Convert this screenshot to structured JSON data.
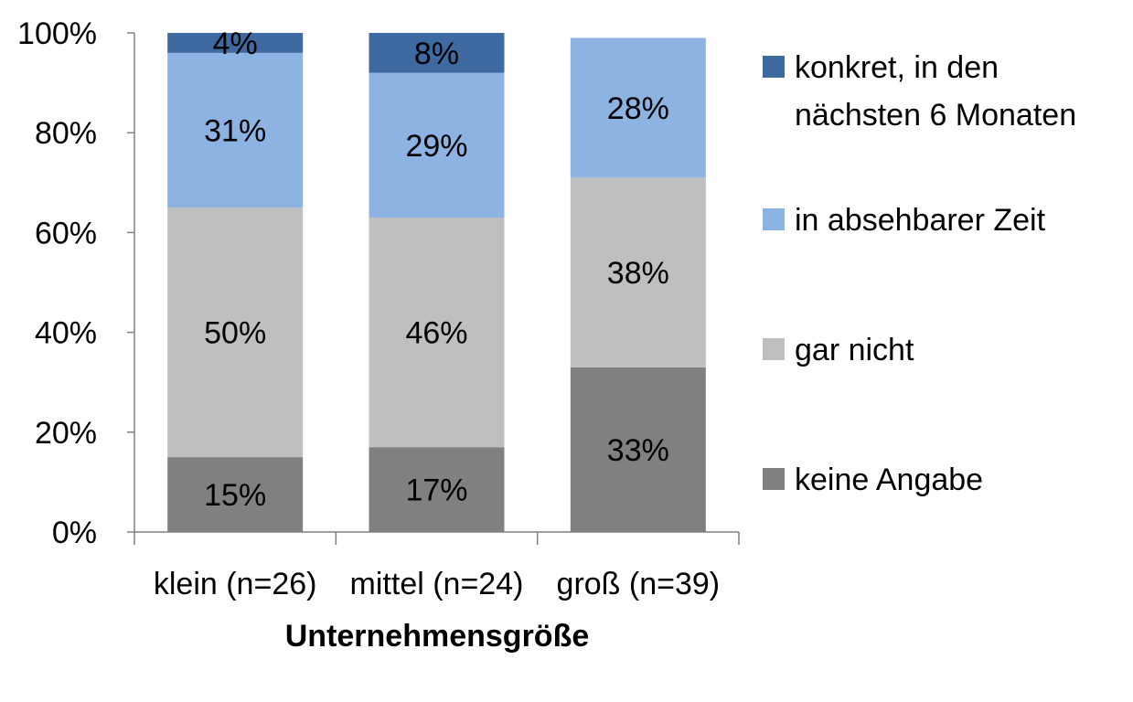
{
  "chart_data": {
    "type": "bar",
    "stacked": true,
    "categories": [
      "klein (n=26)",
      "mittel (n=24)",
      "groß (n=39)"
    ],
    "xlabel": "Unternehmensgröße",
    "ylabel": "",
    "ylim": [
      0,
      100
    ],
    "y_ticks": [
      "0%",
      "20%",
      "40%",
      "60%",
      "80%",
      "100%"
    ],
    "grid": false,
    "legend_position": "right",
    "series": [
      {
        "name": "keine Angabe",
        "color": "#808080",
        "values": [
          15,
          17,
          33
        ],
        "labels": [
          "15%",
          "17%",
          "33%"
        ]
      },
      {
        "name": "gar nicht",
        "color": "#bfbfbf",
        "values": [
          50,
          46,
          38
        ],
        "labels": [
          "50%",
          "46%",
          "38%"
        ]
      },
      {
        "name": "in absehbarer Zeit",
        "color": "#8db3e2",
        "values": [
          31,
          29,
          28
        ],
        "labels": [
          "31%",
          "29%",
          "28%"
        ]
      },
      {
        "name": "konkret, in den nächsten 6 Monaten",
        "color": "#3e6aa1",
        "values": [
          4,
          8,
          0
        ],
        "labels": [
          "4%",
          "8%",
          ""
        ]
      }
    ],
    "legend": [
      {
        "lines": [
          "konkret, in den",
          "nächsten 6 Monaten"
        ],
        "color": "#3e6aa1"
      },
      {
        "lines": [
          "in absehbarer Zeit"
        ],
        "color": "#8db3e2"
      },
      {
        "lines": [
          "gar nicht"
        ],
        "color": "#bfbfbf"
      },
      {
        "lines": [
          "keine Angabe"
        ],
        "color": "#808080"
      }
    ]
  }
}
